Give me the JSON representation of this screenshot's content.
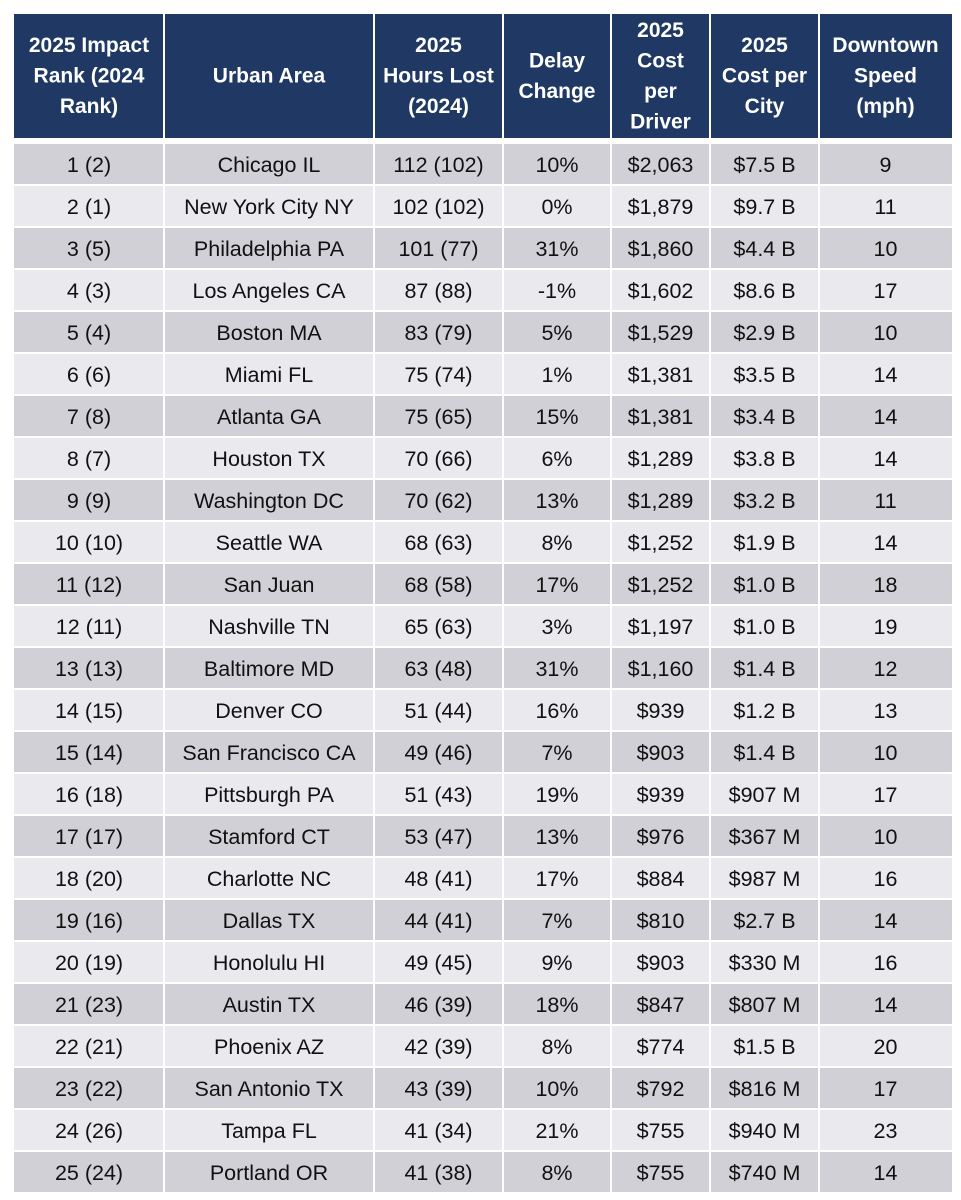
{
  "chart_data": {
    "type": "table",
    "title": "",
    "columns": [
      [
        "2025 Impact",
        "Rank (2024",
        "Rank)"
      ],
      [
        "Urban Area"
      ],
      [
        "2025",
        "Hours Lost",
        "(2024)"
      ],
      [
        "Delay",
        "Change"
      ],
      [
        "2025",
        "Cost",
        "per",
        "Driver"
      ],
      [
        "2025",
        "Cost per",
        "City"
      ],
      [
        "Downtown",
        "Speed",
        "(mph)"
      ]
    ],
    "rows": [
      [
        "1 (2)",
        "Chicago IL",
        "112 (102)",
        "10%",
        "$2,063",
        "$7.5 B",
        "9"
      ],
      [
        "2 (1)",
        "New York City NY",
        "102 (102)",
        "0%",
        "$1,879",
        "$9.7 B",
        "11"
      ],
      [
        "3 (5)",
        "Philadelphia PA",
        "101 (77)",
        "31%",
        "$1,860",
        "$4.4 B",
        "10"
      ],
      [
        "4 (3)",
        "Los Angeles CA",
        "87 (88)",
        "-1%",
        "$1,602",
        "$8.6 B",
        "17"
      ],
      [
        "5 (4)",
        "Boston MA",
        "83 (79)",
        "5%",
        "$1,529",
        "$2.9 B",
        "10"
      ],
      [
        "6 (6)",
        "Miami FL",
        "75 (74)",
        "1%",
        "$1,381",
        "$3.5 B",
        "14"
      ],
      [
        "7 (8)",
        "Atlanta GA",
        "75 (65)",
        "15%",
        "$1,381",
        "$3.4 B",
        "14"
      ],
      [
        "8 (7)",
        "Houston TX",
        "70 (66)",
        "6%",
        "$1,289",
        "$3.8 B",
        "14"
      ],
      [
        "9 (9)",
        "Washington DC",
        "70 (62)",
        "13%",
        "$1,289",
        "$3.2 B",
        "11"
      ],
      [
        "10 (10)",
        "Seattle WA",
        "68 (63)",
        "8%",
        "$1,252",
        "$1.9 B",
        "14"
      ],
      [
        "11 (12)",
        "San Juan",
        "68 (58)",
        "17%",
        "$1,252",
        "$1.0 B",
        "18"
      ],
      [
        "12 (11)",
        "Nashville TN",
        "65 (63)",
        "3%",
        "$1,197",
        "$1.0 B",
        "19"
      ],
      [
        "13 (13)",
        "Baltimore MD",
        "63 (48)",
        "31%",
        "$1,160",
        "$1.4 B",
        "12"
      ],
      [
        "14 (15)",
        "Denver CO",
        "51 (44)",
        "16%",
        "$939",
        "$1.2 B",
        "13"
      ],
      [
        "15 (14)",
        "San Francisco CA",
        "49 (46)",
        "7%",
        "$903",
        "$1.4 B",
        "10"
      ],
      [
        "16 (18)",
        "Pittsburgh PA",
        "51 (43)",
        "19%",
        "$939",
        "$907 M",
        "17"
      ],
      [
        "17 (17)",
        "Stamford CT",
        "53 (47)",
        "13%",
        "$976",
        "$367 M",
        "10"
      ],
      [
        "18 (20)",
        "Charlotte NC",
        "48 (41)",
        "17%",
        "$884",
        "$987 M",
        "16"
      ],
      [
        "19 (16)",
        "Dallas TX",
        "44 (41)",
        "7%",
        "$810",
        "$2.7 B",
        "14"
      ],
      [
        "20 (19)",
        "Honolulu HI",
        "49 (45)",
        "9%",
        "$903",
        "$330 M",
        "16"
      ],
      [
        "21 (23)",
        "Austin TX",
        "46 (39)",
        "18%",
        "$847",
        "$807 M",
        "14"
      ],
      [
        "22 (21)",
        "Phoenix AZ",
        "42 (39)",
        "8%",
        "$774",
        "$1.5 B",
        "20"
      ],
      [
        "23 (22)",
        "San Antonio TX",
        "43 (39)",
        "10%",
        "$792",
        "$816 M",
        "17"
      ],
      [
        "24 (26)",
        "Tampa FL",
        "41 (34)",
        "21%",
        "$755",
        "$940 M",
        "23"
      ],
      [
        "25 (24)",
        "Portland OR",
        "41 (38)",
        "8%",
        "$755",
        "$740 M",
        "14"
      ]
    ]
  },
  "colors": {
    "header_bg": "#1f3864",
    "header_text": "#ffffff",
    "row_odd": "#d0d0d6",
    "row_even": "#e9e9ee",
    "grid": "#ffffff"
  }
}
